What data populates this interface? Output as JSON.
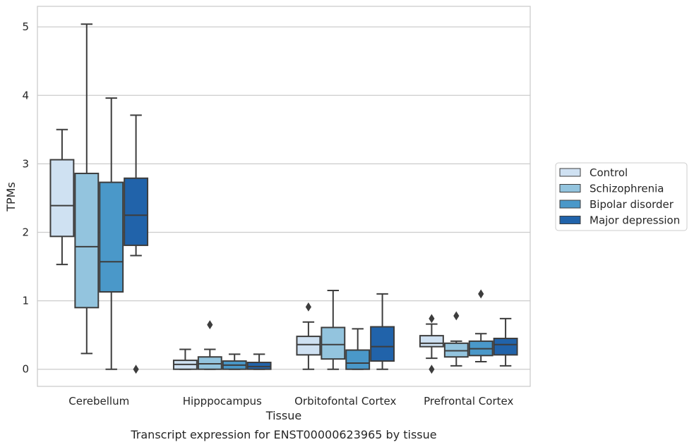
{
  "chart_data": {
    "type": "boxplot",
    "xlabel": "Tissue",
    "ylabel": "TPMs",
    "caption": "Transcript expression for ENST00000623965 by tissue",
    "categories": [
      "Cerebellum",
      "Hipppocampus",
      "Orbitofontal Cortex",
      "Prefrontal Cortex"
    ],
    "ylim": [
      -0.25,
      5.3
    ],
    "yticks": [
      0,
      1,
      2,
      3,
      4,
      5
    ],
    "grid": "horizontal",
    "legend_position": "right",
    "series": [
      {
        "name": "Control",
        "color": "#cfe1f2",
        "boxes": [
          {
            "whisker_low": 1.53,
            "q1": 1.94,
            "median": 2.39,
            "q3": 3.06,
            "whisker_high": 3.5,
            "outliers": []
          },
          {
            "whisker_low": 0.0,
            "q1": 0.0,
            "median": 0.07,
            "q3": 0.13,
            "whisker_high": 0.29,
            "outliers": []
          },
          {
            "whisker_low": 0.0,
            "q1": 0.21,
            "median": 0.36,
            "q3": 0.48,
            "whisker_high": 0.69,
            "outliers": [
              0.91
            ]
          },
          {
            "whisker_low": 0.16,
            "q1": 0.33,
            "median": 0.38,
            "q3": 0.49,
            "whisker_high": 0.66,
            "outliers": [
              0.74,
              0.0
            ]
          }
        ]
      },
      {
        "name": "Schizophrenia",
        "color": "#93c4de",
        "boxes": [
          {
            "whisker_low": 0.23,
            "q1": 0.9,
            "median": 1.79,
            "q3": 2.86,
            "whisker_high": 5.04,
            "outliers": []
          },
          {
            "whisker_low": 0.0,
            "q1": 0.0,
            "median": 0.08,
            "q3": 0.18,
            "whisker_high": 0.29,
            "outliers": [
              0.65
            ]
          },
          {
            "whisker_low": 0.0,
            "q1": 0.15,
            "median": 0.36,
            "q3": 0.61,
            "whisker_high": 1.15,
            "outliers": []
          },
          {
            "whisker_low": 0.05,
            "q1": 0.18,
            "median": 0.27,
            "q3": 0.38,
            "whisker_high": 0.41,
            "outliers": [
              0.78
            ]
          }
        ]
      },
      {
        "name": "Bipolar disorder",
        "color": "#4a98c9",
        "boxes": [
          {
            "whisker_low": 0.0,
            "q1": 1.13,
            "median": 1.57,
            "q3": 2.73,
            "whisker_high": 3.96,
            "outliers": []
          },
          {
            "whisker_low": 0.0,
            "q1": 0.0,
            "median": 0.06,
            "q3": 0.12,
            "whisker_high": 0.22,
            "outliers": []
          },
          {
            "whisker_low": 0.0,
            "q1": 0.0,
            "median": 0.09,
            "q3": 0.28,
            "whisker_high": 0.59,
            "outliers": []
          },
          {
            "whisker_low": 0.11,
            "q1": 0.2,
            "median": 0.3,
            "q3": 0.41,
            "whisker_high": 0.52,
            "outliers": [
              1.1
            ]
          }
        ]
      },
      {
        "name": "Major depression",
        "color": "#2163aa",
        "boxes": [
          {
            "whisker_low": 1.66,
            "q1": 1.81,
            "median": 2.25,
            "q3": 2.79,
            "whisker_high": 3.71,
            "outliers": [
              0.0
            ]
          },
          {
            "whisker_low": 0.0,
            "q1": 0.0,
            "median": 0.04,
            "q3": 0.1,
            "whisker_high": 0.22,
            "outliers": []
          },
          {
            "whisker_low": 0.0,
            "q1": 0.12,
            "median": 0.33,
            "q3": 0.62,
            "whisker_high": 1.1,
            "outliers": []
          },
          {
            "whisker_low": 0.05,
            "q1": 0.21,
            "median": 0.36,
            "q3": 0.45,
            "whisker_high": 0.74,
            "outliers": []
          }
        ]
      }
    ]
  },
  "colors": {
    "grid": "#cccccc",
    "frame": "#cccccc",
    "box_edge": "#3d3d3d"
  }
}
